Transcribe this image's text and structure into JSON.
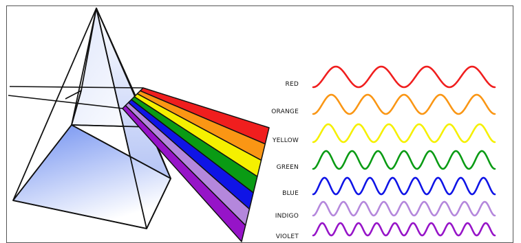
{
  "diagram": {
    "spectrum": [
      {
        "label": "RED",
        "color": "#f01e1e",
        "wave_cycles": 4
      },
      {
        "label": "ORANGE",
        "color": "#fa9614",
        "wave_cycles": 5
      },
      {
        "label": "YELLOW",
        "color": "#f5f000",
        "wave_cycles": 6
      },
      {
        "label": "GREEN",
        "color": "#0a9b14",
        "wave_cycles": 7
      },
      {
        "label": "BLUE",
        "color": "#0f14e6",
        "wave_cycles": 8
      },
      {
        "label": "INDIGO",
        "color": "#b487dc",
        "wave_cycles": 9
      },
      {
        "label": "VIOLET",
        "color": "#9614c8",
        "wave_cycles": 10
      }
    ],
    "prism_color": "#6e8ef0",
    "line_color": "#111111"
  }
}
